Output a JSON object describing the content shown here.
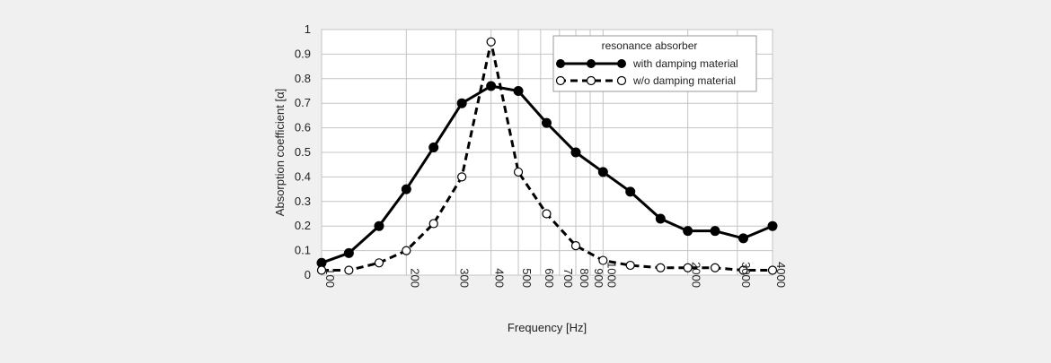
{
  "chart_data": {
    "type": "line",
    "xscale": "log",
    "xlabel": "Frequency [Hz]",
    "ylabel": "Absorption coefficient [α]",
    "xlim": [
      100,
      4000
    ],
    "ylim": [
      0,
      1
    ],
    "grid": true,
    "legend": {
      "title": "resonance absorber",
      "placement": "top-right"
    },
    "x_ticks": [
      {
        "value": 100,
        "label": "100"
      },
      {
        "value": 200,
        "label": "200"
      },
      {
        "value": 300,
        "label": "300"
      },
      {
        "value": 400,
        "label": "400"
      },
      {
        "value": 500,
        "label": "500"
      },
      {
        "value": 600,
        "label": "600"
      },
      {
        "value": 700,
        "label": "700"
      },
      {
        "value": 800,
        "label": "800"
      },
      {
        "value": 900,
        "label": "900"
      },
      {
        "value": 1000,
        "label": "1000"
      },
      {
        "value": 2000,
        "label": "2000"
      },
      {
        "value": 3000,
        "label": "3000"
      },
      {
        "value": 4000,
        "label": "4000"
      }
    ],
    "y_ticks": [
      {
        "value": 0,
        "label": "0"
      },
      {
        "value": 0.1,
        "label": "0.1"
      },
      {
        "value": 0.2,
        "label": "0.2"
      },
      {
        "value": 0.3,
        "label": "0.3"
      },
      {
        "value": 0.4,
        "label": "0.4"
      },
      {
        "value": 0.5,
        "label": "0.5"
      },
      {
        "value": 0.6,
        "label": "0.6"
      },
      {
        "value": 0.7,
        "label": "0.7"
      },
      {
        "value": 0.8,
        "label": "0.8"
      },
      {
        "value": 0.9,
        "label": "0.9"
      },
      {
        "value": 1,
        "label": "1"
      }
    ],
    "x": [
      100,
      125,
      160,
      200,
      250,
      315,
      400,
      500,
      630,
      800,
      1000,
      1250,
      1600,
      2000,
      2500,
      3150,
      4000
    ],
    "series": [
      {
        "name": "with damping material",
        "line_style": "solid",
        "marker": "filled-circle",
        "color": "#000000",
        "values": [
          0.05,
          0.09,
          0.2,
          0.35,
          0.52,
          0.7,
          0.77,
          0.75,
          0.62,
          0.5,
          0.42,
          0.34,
          0.23,
          0.18,
          0.18,
          0.15,
          0.2
        ]
      },
      {
        "name": "w/o damping material",
        "line_style": "dashed",
        "marker": "open-circle",
        "color": "#000000",
        "values": [
          0.02,
          0.02,
          0.05,
          0.1,
          0.21,
          0.4,
          0.95,
          0.42,
          0.25,
          0.12,
          0.06,
          0.04,
          0.03,
          0.03,
          0.03,
          0.02,
          0.02
        ]
      }
    ]
  }
}
